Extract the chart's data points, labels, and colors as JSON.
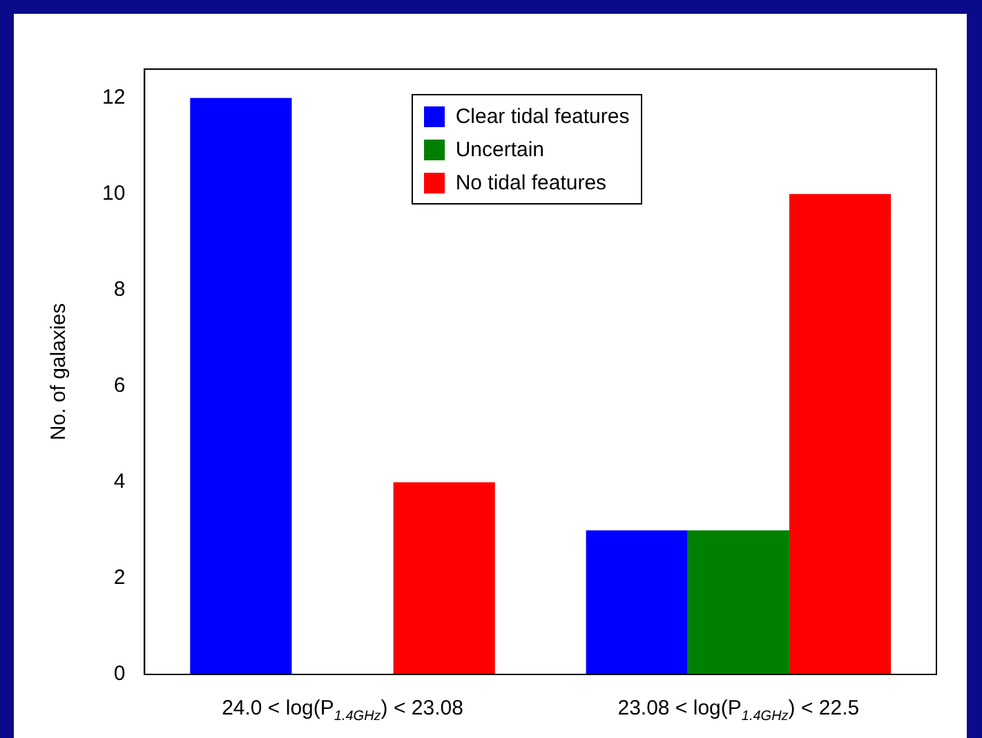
{
  "chart_data": {
    "type": "bar",
    "ylabel": "No. of galaxies",
    "categories": [
      "24.0 < log(P$_{1.4GHz}$) < 23.08",
      "23.08 < log(P$_{1.4GHz}$) < 22.5"
    ],
    "series": [
      {
        "name": "Clear tidal features",
        "color": "#0000ff",
        "values": [
          12,
          3
        ]
      },
      {
        "name": "Uncertain",
        "color": "#008000",
        "values": [
          0,
          3
        ]
      },
      {
        "name": "No tidal features",
        "color": "#ff0000",
        "values": [
          4,
          10
        ]
      }
    ],
    "ylim": [
      0,
      12.6
    ],
    "yticks": [
      0,
      2,
      4,
      6,
      8,
      10,
      12
    ],
    "grid": false,
    "legend": "top"
  }
}
